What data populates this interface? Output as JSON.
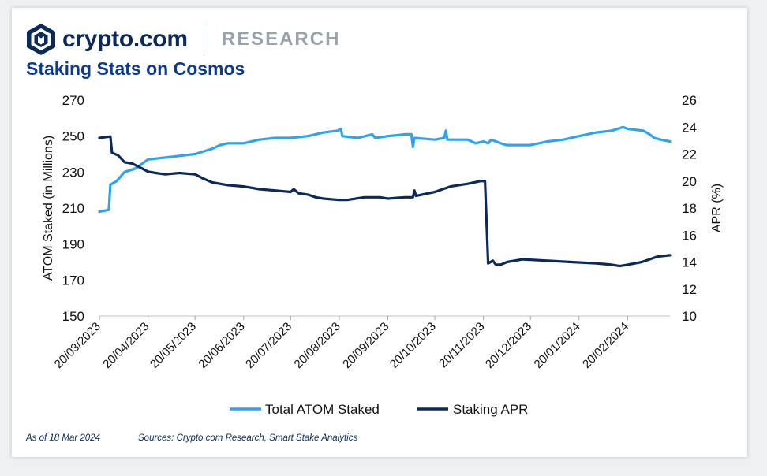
{
  "brand": {
    "name": "crypto.com",
    "section": "RESEARCH"
  },
  "title": "Staking Stats on Cosmos",
  "footer": {
    "as_of": "As of 18 Mar 2024",
    "sources": "Sources: Crypto.com Research, Smart Stake Analytics"
  },
  "colors": {
    "light_series": "#2fa3ee",
    "dark_series": "#0b2a5b",
    "title": "#0b3b8f",
    "brand": "#0b2a5b",
    "muted": "#9aa3ad"
  },
  "chart_data": {
    "type": "line",
    "x_format": "DD/MM/YYYY",
    "x_ticks": [
      "20/03/2023",
      "20/04/2023",
      "20/05/2023",
      "20/06/2023",
      "20/07/2023",
      "20/08/2023",
      "20/09/2023",
      "20/10/2023",
      "20/11/2023",
      "20/12/2023",
      "20/01/2024",
      "20/02/2024"
    ],
    "xlim": [
      "2023-03-20",
      "2024-03-18"
    ],
    "y_left": {
      "label": "ATOM Staked (in Millions)",
      "lim": [
        150,
        270
      ],
      "ticks": [
        150,
        170,
        190,
        210,
        230,
        250,
        270
      ]
    },
    "y_right": {
      "label": "APR (%)",
      "lim": [
        10,
        26
      ],
      "ticks": [
        10,
        12,
        14,
        16,
        18,
        20,
        22,
        24,
        26
      ]
    },
    "legend_position": "bottom",
    "series": [
      {
        "name": "Total ATOM Staked",
        "axis": "left",
        "points": [
          [
            "2023-03-20",
            208
          ],
          [
            "2023-03-26",
            209
          ],
          [
            "2023-03-27",
            223
          ],
          [
            "2023-03-31",
            225
          ],
          [
            "2023-04-05",
            230
          ],
          [
            "2023-04-12",
            232
          ],
          [
            "2023-04-20",
            237
          ],
          [
            "2023-04-30",
            238
          ],
          [
            "2023-05-10",
            239
          ],
          [
            "2023-05-20",
            240
          ],
          [
            "2023-05-31",
            243
          ],
          [
            "2023-06-05",
            245
          ],
          [
            "2023-06-10",
            246
          ],
          [
            "2023-06-20",
            246
          ],
          [
            "2023-06-30",
            248
          ],
          [
            "2023-07-10",
            249
          ],
          [
            "2023-07-20",
            249
          ],
          [
            "2023-07-31",
            250
          ],
          [
            "2023-08-10",
            252
          ],
          [
            "2023-08-19",
            253
          ],
          [
            "2023-08-21",
            254
          ],
          [
            "2023-08-22",
            250
          ],
          [
            "2023-09-01",
            249
          ],
          [
            "2023-09-10",
            251
          ],
          [
            "2023-09-12",
            249
          ],
          [
            "2023-09-20",
            250
          ],
          [
            "2023-10-01",
            251
          ],
          [
            "2023-10-05",
            251
          ],
          [
            "2023-10-06",
            244
          ],
          [
            "2023-10-07",
            249
          ],
          [
            "2023-10-20",
            248
          ],
          [
            "2023-10-26",
            249
          ],
          [
            "2023-10-27",
            253
          ],
          [
            "2023-10-28",
            248
          ],
          [
            "2023-11-10",
            248
          ],
          [
            "2023-11-15",
            246
          ],
          [
            "2023-11-20",
            247
          ],
          [
            "2023-11-23",
            246
          ],
          [
            "2023-11-25",
            248
          ],
          [
            "2023-12-01",
            246
          ],
          [
            "2023-12-05",
            245
          ],
          [
            "2023-12-10",
            245
          ],
          [
            "2023-12-20",
            245
          ],
          [
            "2023-12-31",
            247
          ],
          [
            "2024-01-10",
            248
          ],
          [
            "2024-01-20",
            250
          ],
          [
            "2024-01-31",
            252
          ],
          [
            "2024-02-10",
            253
          ],
          [
            "2024-02-17",
            255
          ],
          [
            "2024-02-20",
            254
          ],
          [
            "2024-03-01",
            253
          ],
          [
            "2024-03-05",
            251
          ],
          [
            "2024-03-08",
            249
          ],
          [
            "2024-03-12",
            248
          ],
          [
            "2024-03-18",
            247
          ]
        ]
      },
      {
        "name": "Staking APR",
        "axis": "right",
        "points": [
          [
            "2023-03-20",
            23.2
          ],
          [
            "2023-03-27",
            23.3
          ],
          [
            "2023-03-28",
            22.1
          ],
          [
            "2023-04-01",
            21.9
          ],
          [
            "2023-04-05",
            21.4
          ],
          [
            "2023-04-10",
            21.3
          ],
          [
            "2023-04-15",
            21.0
          ],
          [
            "2023-04-20",
            20.7
          ],
          [
            "2023-04-25",
            20.6
          ],
          [
            "2023-05-01",
            20.5
          ],
          [
            "2023-05-10",
            20.6
          ],
          [
            "2023-05-20",
            20.5
          ],
          [
            "2023-05-25",
            20.2
          ],
          [
            "2023-05-31",
            19.9
          ],
          [
            "2023-06-10",
            19.7
          ],
          [
            "2023-06-20",
            19.6
          ],
          [
            "2023-06-30",
            19.4
          ],
          [
            "2023-07-10",
            19.3
          ],
          [
            "2023-07-20",
            19.2
          ],
          [
            "2023-07-22",
            19.4
          ],
          [
            "2023-07-25",
            19.1
          ],
          [
            "2023-07-31",
            19.0
          ],
          [
            "2023-08-05",
            18.8
          ],
          [
            "2023-08-10",
            18.7
          ],
          [
            "2023-08-20",
            18.6
          ],
          [
            "2023-08-25",
            18.6
          ],
          [
            "2023-09-05",
            18.8
          ],
          [
            "2023-09-15",
            18.8
          ],
          [
            "2023-09-20",
            18.7
          ],
          [
            "2023-10-01",
            18.8
          ],
          [
            "2023-10-06",
            18.8
          ],
          [
            "2023-10-07",
            19.3
          ],
          [
            "2023-10-08",
            18.9
          ],
          [
            "2023-10-20",
            19.2
          ],
          [
            "2023-10-30",
            19.6
          ],
          [
            "2023-11-10",
            19.8
          ],
          [
            "2023-11-18",
            20.0
          ],
          [
            "2023-11-21",
            20.0
          ],
          [
            "2023-11-23",
            13.9
          ],
          [
            "2023-11-26",
            14.1
          ],
          [
            "2023-11-28",
            13.8
          ],
          [
            "2023-12-01",
            13.8
          ],
          [
            "2023-12-05",
            14.0
          ],
          [
            "2023-12-15",
            14.2
          ],
          [
            "2023-12-31",
            14.1
          ],
          [
            "2024-01-15",
            14.0
          ],
          [
            "2024-01-31",
            13.9
          ],
          [
            "2024-02-10",
            13.8
          ],
          [
            "2024-02-15",
            13.7
          ],
          [
            "2024-02-20",
            13.8
          ],
          [
            "2024-02-29",
            14.0
          ],
          [
            "2024-03-05",
            14.2
          ],
          [
            "2024-03-10",
            14.4
          ],
          [
            "2024-03-18",
            14.5
          ]
        ]
      }
    ]
  }
}
